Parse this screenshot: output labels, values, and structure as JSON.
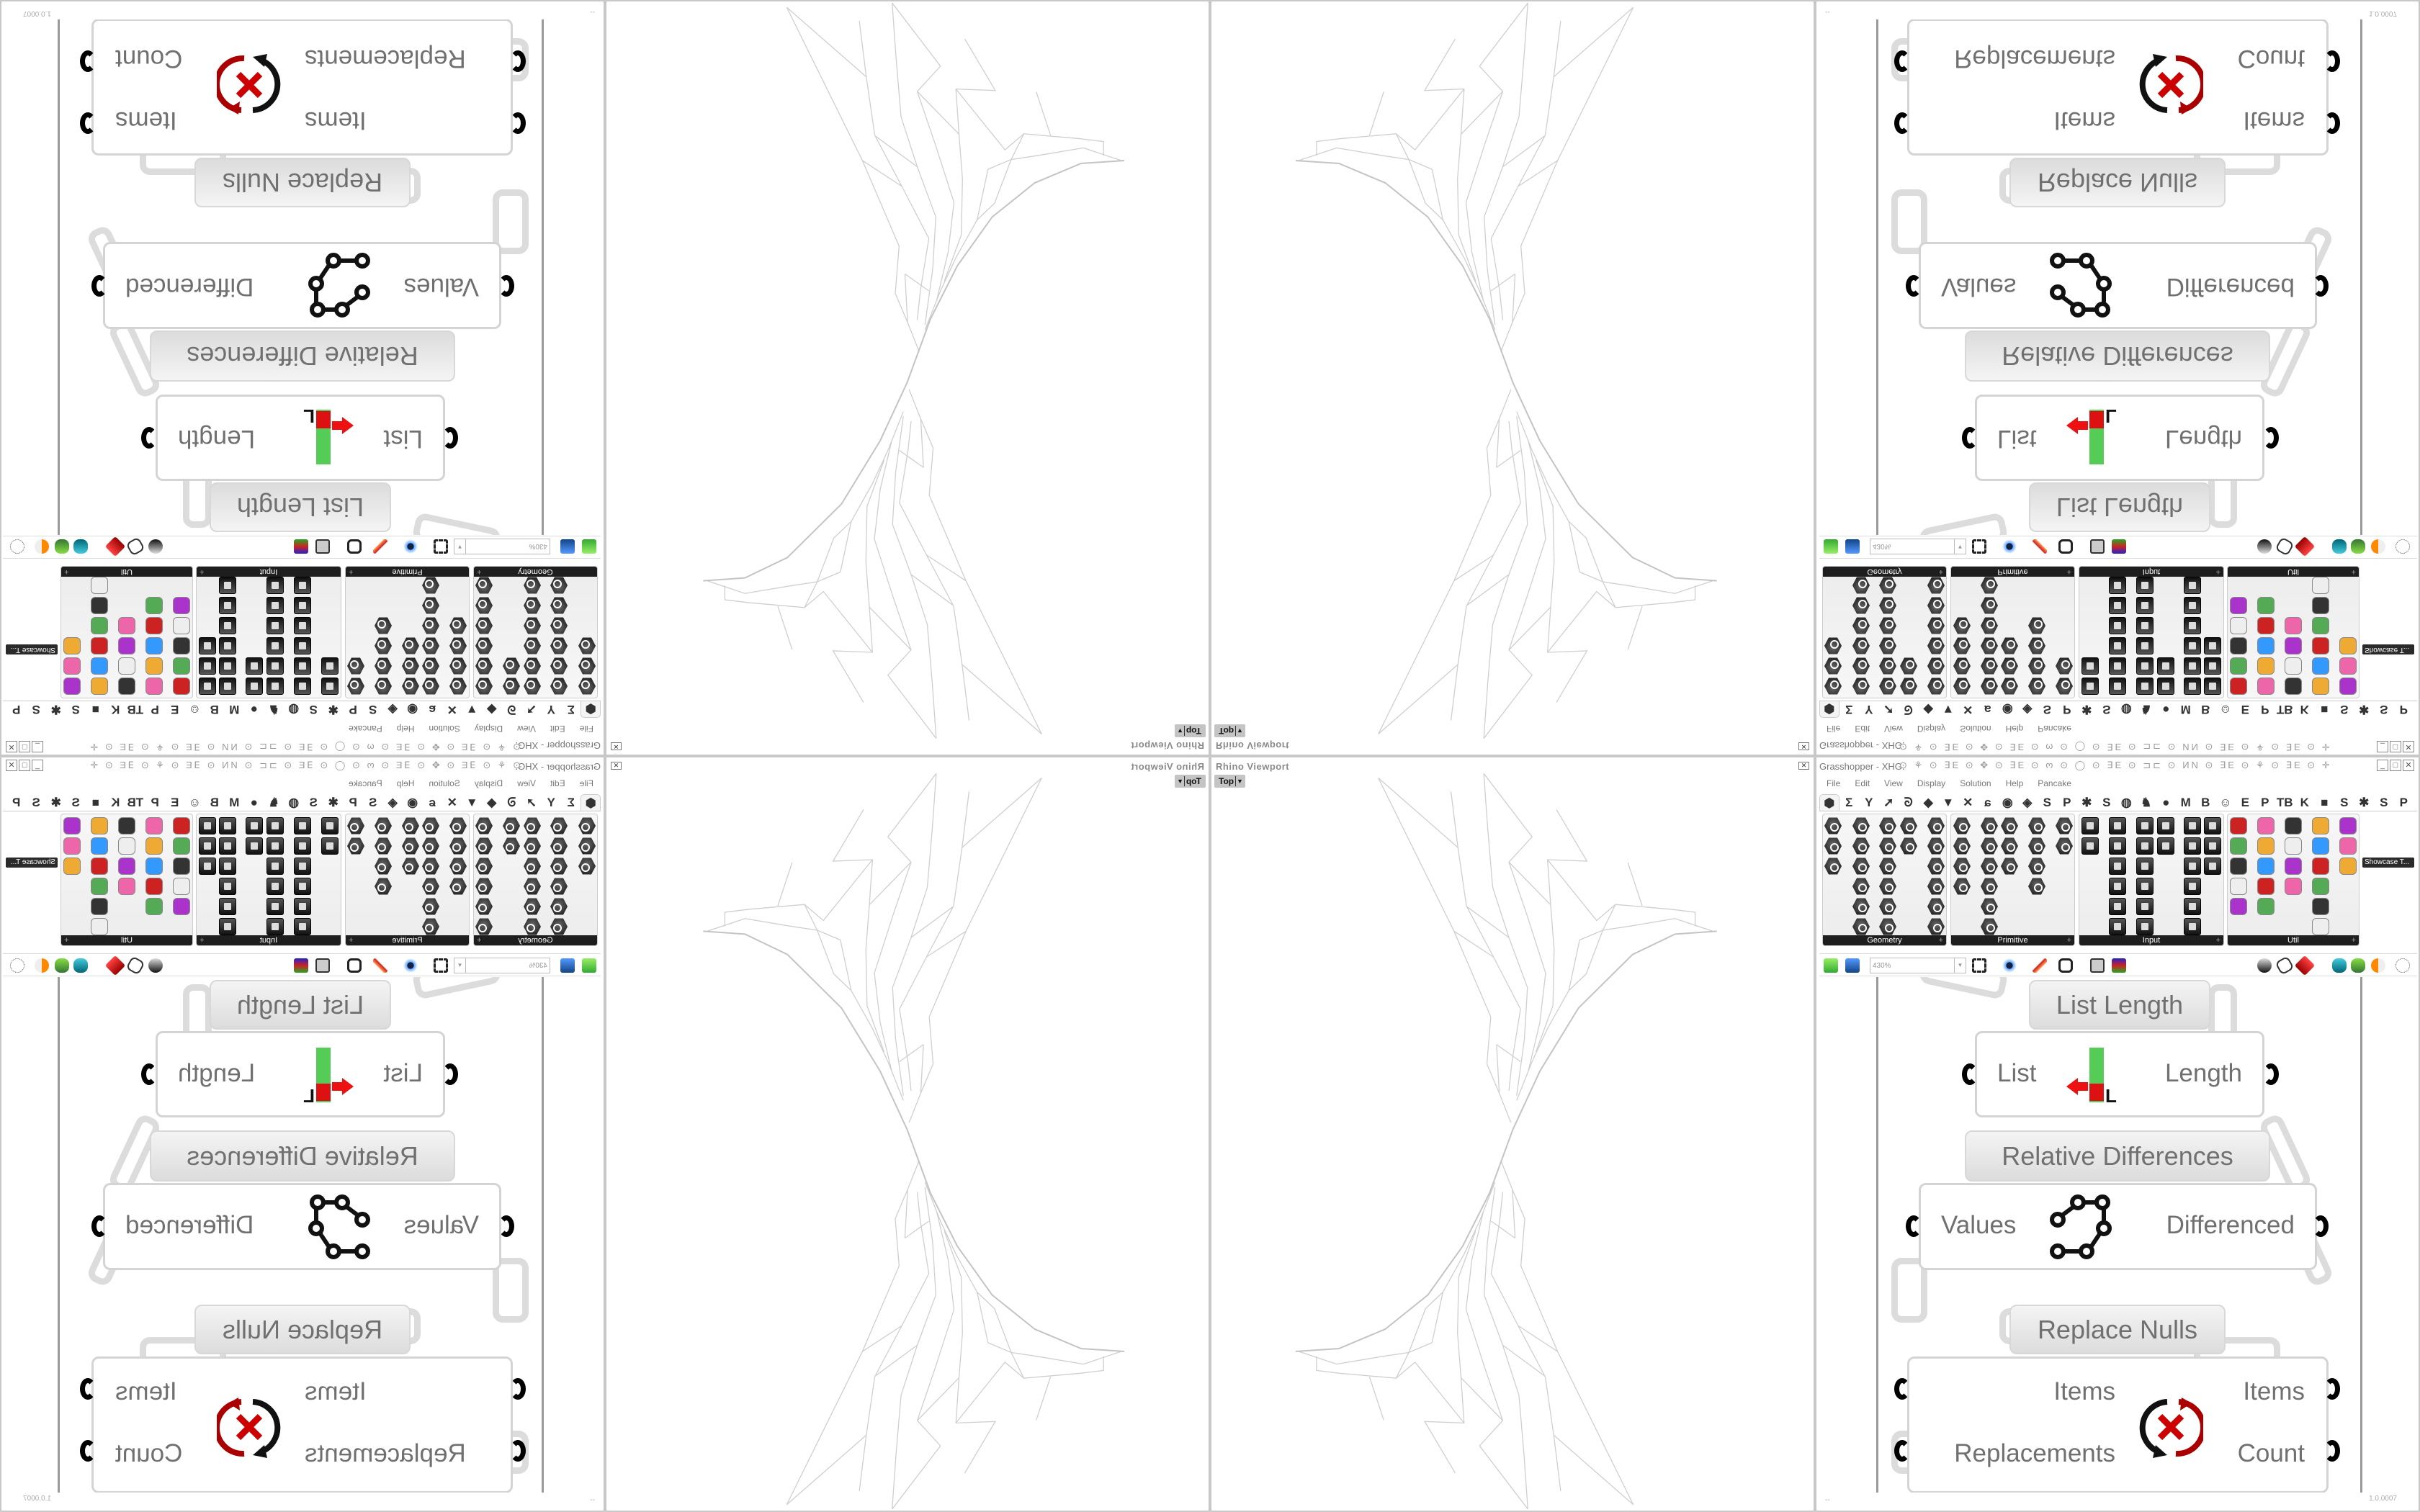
{
  "rhino": {
    "title": "Rhino Viewport",
    "view_label": "Top",
    "view_arrow": "▼",
    "close": "✕"
  },
  "grasshopper": {
    "title": "Grasshopper - XHG.",
    "title_glyphs": "⊙ ⚘ ⊙ ∃E ⊙ ✥ ⊙ ∃E ⊙ ო ⊙ ◯ ⊙ ∃E ⊙ ⊐⊏ ⊙ ИN ⊙ ∃E ⊙ ⚘ ⊙ ∃E ⊙ ✛ ⊙ ⊙ ⊙ ∩ ⊙ ◯ ⊙ ∃E ⊙ ⚘ ⊙ ∩ ⊙ ✥ ...",
    "window_buttons": [
      "_",
      "□",
      "✕"
    ],
    "menu": [
      "File",
      "Edit",
      "View",
      "Display",
      "Solution",
      "Help",
      "Pancake"
    ],
    "tabs": [
      "⬢",
      "Σ",
      "Y",
      "➚",
      "ᘐ",
      "◆",
      "▼",
      "✕",
      "ɕ",
      "◉",
      "◈",
      "S",
      "P",
      "✱",
      "S",
      "◍",
      "♞",
      "●",
      "M",
      "B",
      "☺",
      "E",
      "P",
      "TB",
      "K",
      "■",
      "S",
      "✱",
      "S",
      "P"
    ],
    "panels": [
      {
        "label": "Geometry",
        "icon_style": "hex"
      },
      {
        "label": "Primitive",
        "icon_style": "hex"
      },
      {
        "label": "Input",
        "icon_style": "square"
      },
      {
        "label": "Util",
        "icon_style": "mixed"
      }
    ],
    "panel_expand": "+",
    "tooltip": "Showcase T...",
    "zoom_level": "430%",
    "components": {
      "list_length": {
        "label": "List Length",
        "input": "List",
        "output": "Length"
      },
      "relative_differences": {
        "label": "Relative Differences",
        "input": "Values",
        "output": "Differenced"
      },
      "replace_nulls": {
        "label": "Replace Nulls",
        "inputs": [
          "Items",
          "Replacements"
        ],
        "outputs": [
          "Items",
          "Count"
        ]
      }
    },
    "status": {
      "left": "--",
      "version": "1.0.0007"
    },
    "colors": {
      "accent_red": "#c00000",
      "wire_gray": "#dcdcdc",
      "text_gray": "#707070"
    }
  }
}
